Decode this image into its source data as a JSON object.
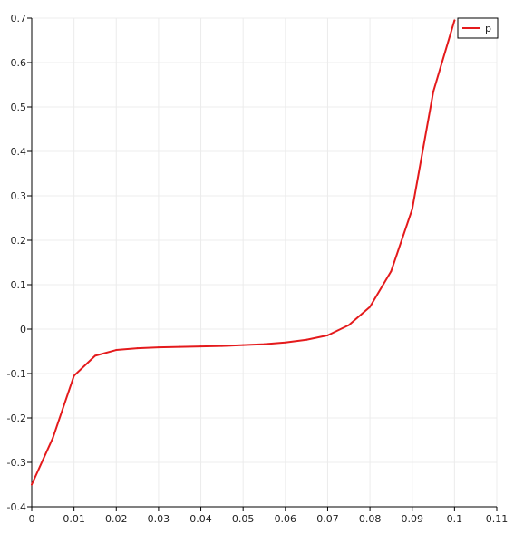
{
  "chart_data": {
    "type": "line",
    "title": "",
    "xlabel": "",
    "ylabel": "",
    "xlim": [
      0,
      0.11
    ],
    "ylim": [
      -0.4,
      0.7
    ],
    "x_ticks": [
      0,
      0.01,
      0.02,
      0.03,
      0.04,
      0.05,
      0.06,
      0.07,
      0.08,
      0.09,
      0.1,
      0.11
    ],
    "x_tick_labels": [
      "0",
      "0.01",
      "0.02",
      "0.03",
      "0.04",
      "0.05",
      "0.06",
      "0.07",
      "0.08",
      "0.09",
      "0.1",
      "0.11"
    ],
    "y_ticks": [
      -0.4,
      -0.3,
      -0.2,
      -0.1,
      0,
      0.1,
      0.2,
      0.3,
      0.4,
      0.5,
      0.6,
      0.7
    ],
    "y_tick_labels": [
      "-0.4",
      "-0.3",
      "-0.2",
      "-0.1",
      "0",
      "0.1",
      "0.2",
      "0.3",
      "0.4",
      "0.5",
      "0.6",
      "0.7"
    ],
    "grid": true,
    "legend_position": "top-right",
    "series": [
      {
        "name": "p",
        "color": "#e41a1c",
        "x": [
          0,
          0.005,
          0.01,
          0.015,
          0.02,
          0.025,
          0.03,
          0.035,
          0.04,
          0.045,
          0.05,
          0.055,
          0.06,
          0.065,
          0.07,
          0.075,
          0.08,
          0.085,
          0.09,
          0.095,
          0.1
        ],
        "y": [
          -0.35,
          -0.245,
          -0.105,
          -0.06,
          -0.047,
          -0.043,
          -0.041,
          -0.04,
          -0.039,
          -0.038,
          -0.036,
          -0.034,
          -0.03,
          -0.024,
          -0.014,
          0.009,
          0.05,
          0.13,
          0.27,
          0.535,
          0.695
        ]
      }
    ]
  }
}
